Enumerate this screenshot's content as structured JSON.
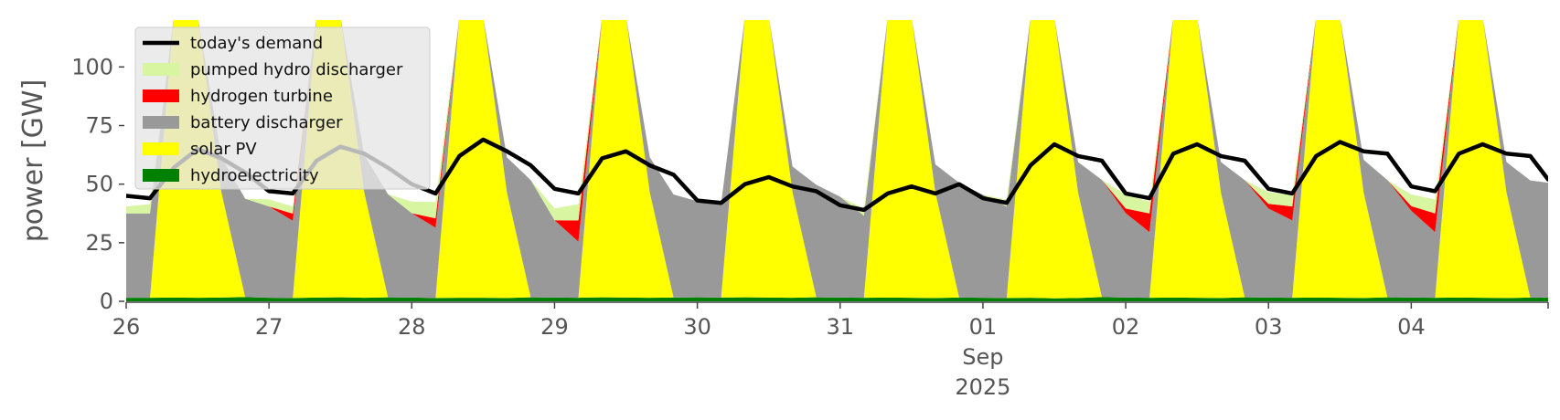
{
  "chart_data": {
    "type": "area",
    "xlabel": "",
    "ylabel": "power [GW]",
    "ylim": [
      0,
      120
    ],
    "xlim": [
      "2025-08-26T00:00",
      "2025-09-04T23:00"
    ],
    "y_ticks": [
      "0",
      "25",
      "50",
      "75",
      "100"
    ],
    "x_ticks": [
      "26",
      "27",
      "28",
      "29",
      "30",
      "31",
      "01",
      "02",
      "03",
      "04"
    ],
    "x_month_label": "Sep",
    "x_year_label": "2025",
    "grid": false,
    "legend_position": "top-left",
    "x": [
      "2025-08-26T00:00",
      "2025-08-26T04:00",
      "2025-08-26T08:00",
      "2025-08-26T12:00",
      "2025-08-26T16:00",
      "2025-08-26T20:00",
      "2025-08-27T00:00",
      "2025-08-27T04:00",
      "2025-08-27T08:00",
      "2025-08-27T12:00",
      "2025-08-27T16:00",
      "2025-08-27T20:00",
      "2025-08-28T00:00",
      "2025-08-28T04:00",
      "2025-08-28T08:00",
      "2025-08-28T12:00",
      "2025-08-28T16:00",
      "2025-08-28T20:00",
      "2025-08-29T00:00",
      "2025-08-29T04:00",
      "2025-08-29T08:00",
      "2025-08-29T12:00",
      "2025-08-29T16:00",
      "2025-08-29T20:00",
      "2025-08-30T00:00",
      "2025-08-30T04:00",
      "2025-08-30T08:00",
      "2025-08-30T12:00",
      "2025-08-30T16:00",
      "2025-08-30T20:00",
      "2025-08-31T00:00",
      "2025-08-31T04:00",
      "2025-08-31T08:00",
      "2025-08-31T12:00",
      "2025-08-31T16:00",
      "2025-08-31T20:00",
      "2025-09-01T00:00",
      "2025-09-01T04:00",
      "2025-09-01T08:00",
      "2025-09-01T12:00",
      "2025-09-01T16:00",
      "2025-09-01T20:00",
      "2025-09-02T00:00",
      "2025-09-02T04:00",
      "2025-09-02T08:00",
      "2025-09-02T12:00",
      "2025-09-02T16:00",
      "2025-09-02T20:00",
      "2025-09-03T00:00",
      "2025-09-03T04:00",
      "2025-09-03T08:00",
      "2025-09-03T12:00",
      "2025-09-03T16:00",
      "2025-09-03T20:00",
      "2025-09-04T00:00",
      "2025-09-04T04:00",
      "2025-09-04T08:00",
      "2025-09-04T12:00",
      "2025-09-04T16:00",
      "2025-09-04T20:00",
      "2025-09-04T23:00"
    ],
    "series": [
      {
        "name": "hydroelectricity",
        "color": "#008000",
        "values": [
          1.5,
          1.5,
          1.6,
          1.5,
          1.6,
          1.8,
          1.5,
          1.4,
          1.6,
          1.7,
          1.5,
          1.7,
          1.6,
          1.4,
          1.5,
          1.5,
          1.4,
          1.7,
          1.6,
          1.5,
          1.7,
          1.6,
          1.5,
          1.6,
          1.7,
          1.6,
          1.7,
          1.6,
          1.5,
          1.7,
          1.6,
          1.5,
          1.6,
          1.5,
          1.4,
          1.6,
          1.5,
          1.4,
          1.5,
          1.3,
          1.4,
          1.8,
          1.6,
          1.5,
          1.6,
          1.5,
          1.4,
          1.7,
          1.6,
          1.5,
          1.6,
          1.5,
          1.4,
          1.7,
          1.6,
          1.5,
          1.6,
          1.5,
          1.4,
          1.6,
          1.6
        ]
      },
      {
        "name": "solar PV",
        "color": "#ffff00",
        "values": [
          0,
          0,
          120,
          120,
          45,
          0,
          0,
          0,
          120,
          120,
          45,
          0,
          0,
          0,
          120,
          120,
          45,
          0,
          0,
          0,
          120,
          120,
          45,
          0,
          0,
          0,
          120,
          120,
          45,
          0,
          0,
          0,
          120,
          120,
          45,
          0,
          0,
          0,
          120,
          120,
          45,
          0,
          0,
          0,
          120,
          120,
          45,
          0,
          0,
          0,
          120,
          120,
          45,
          0,
          0,
          0,
          120,
          120,
          45,
          0,
          0
        ]
      },
      {
        "name": "battery discharger",
        "color": "#999999",
        "values": [
          36,
          36,
          0,
          0,
          15,
          42,
          39,
          33,
          0,
          0,
          16,
          44,
          36,
          30,
          0,
          0,
          15,
          50,
          33,
          24,
          0,
          0,
          15,
          44,
          41,
          40,
          0,
          0,
          11,
          48,
          43,
          35,
          0,
          0,
          12,
          49,
          44,
          39,
          0,
          0,
          13,
          50,
          36,
          28,
          0,
          0,
          13,
          50,
          38,
          33,
          0,
          0,
          14,
          50,
          37,
          28,
          0,
          0,
          13,
          50,
          49
        ]
      },
      {
        "name": "hydrogen turbine",
        "color": "#ff0000",
        "values": [
          0,
          0,
          0,
          0,
          0,
          0,
          0,
          3,
          0,
          0,
          0,
          0,
          0,
          4,
          0,
          0,
          0,
          0,
          0,
          9,
          0,
          0,
          0,
          0,
          0,
          0,
          0,
          0,
          0,
          0,
          0,
          0,
          0,
          0,
          0,
          0,
          0,
          0,
          0,
          0,
          0,
          0,
          2,
          8,
          0,
          0,
          0,
          0,
          2,
          6,
          0,
          0,
          0,
          0,
          2,
          8,
          0,
          0,
          0,
          0,
          0
        ]
      },
      {
        "name": "pumped hydro discharger",
        "color": "#d8f5a2",
        "values": [
          3,
          4,
          0,
          0,
          0,
          0,
          3,
          3,
          0,
          0,
          0,
          0,
          5,
          7,
          0,
          0,
          0,
          0,
          5,
          7,
          0,
          0,
          0,
          0,
          0,
          0,
          0,
          0,
          0,
          0,
          0,
          3,
          0,
          0,
          0,
          0,
          0,
          3,
          0,
          0,
          0,
          0,
          6,
          5,
          0,
          0,
          0,
          0,
          5,
          5,
          0,
          0,
          0,
          0,
          5,
          6,
          0,
          0,
          0,
          0,
          0
        ]
      },
      {
        "name": "today's demand",
        "color": "#000000",
        "values": [
          45,
          44,
          57,
          65,
          61,
          55,
          47,
          46,
          60,
          66,
          63,
          57,
          50,
          46,
          62,
          69,
          64,
          58,
          48,
          46,
          61,
          64,
          58,
          54,
          43,
          42,
          50,
          53,
          49,
          47,
          41,
          39,
          46,
          49,
          46,
          50,
          44,
          42,
          58,
          67,
          62,
          60,
          46,
          44,
          63,
          67,
          62,
          60,
          48,
          46,
          62,
          68,
          64,
          63,
          49,
          47,
          63,
          67,
          63,
          62,
          52
        ]
      }
    ]
  }
}
